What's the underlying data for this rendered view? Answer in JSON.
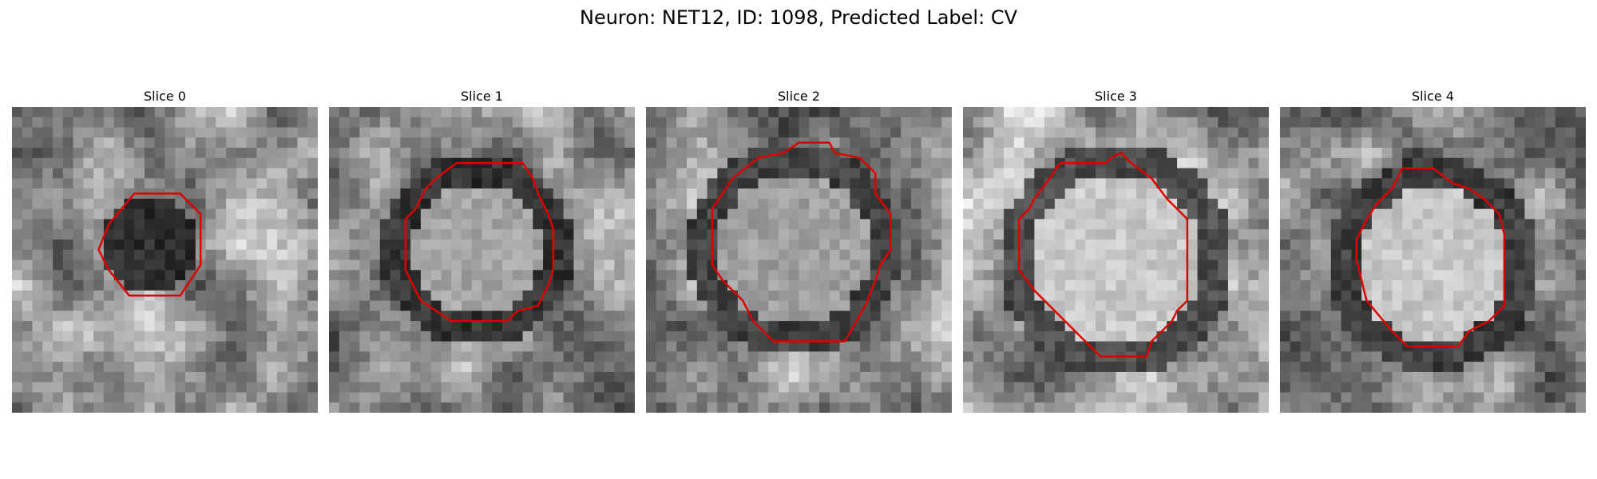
{
  "figure": {
    "title": "Neuron: NET12, ID: 1098, Predicted Label: CV"
  },
  "contour_color": "#e00000",
  "panels": [
    {
      "title": "Slice 0",
      "image": {
        "center_brightness": "dark",
        "ring": "none",
        "background": "bright grainy"
      }
    },
    {
      "title": "Slice 1",
      "image": {
        "center_brightness": "medium-bright",
        "ring": "dark",
        "background": "grainy"
      }
    },
    {
      "title": "Slice 2",
      "image": {
        "center_brightness": "medium",
        "ring": "dark",
        "background": "grainy"
      }
    },
    {
      "title": "Slice 3",
      "image": {
        "center_brightness": "bright",
        "ring": "dark",
        "background": "grainy"
      }
    },
    {
      "title": "Slice 4",
      "image": {
        "center_brightness": "bright",
        "ring": "dark",
        "background": "grainy"
      }
    }
  ]
}
